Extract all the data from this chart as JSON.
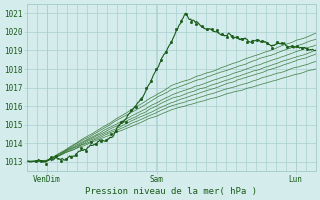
{
  "title": "Pression niveau de la mer( hPa )",
  "xlabel_ticks": [
    "VenDim",
    "Sam",
    "Lun"
  ],
  "xlabel_tick_positions": [
    0.07,
    0.45,
    0.93
  ],
  "ylim": [
    1012.5,
    1021.5
  ],
  "yticks": [
    1013,
    1014,
    1015,
    1016,
    1017,
    1018,
    1019,
    1020,
    1021
  ],
  "bg_color": "#d4ecec",
  "grid_color": "#aacece",
  "line_color_dark": "#1a5c1a",
  "line_color_light": "#3a7a3a",
  "xlim": [
    0.0,
    1.0
  ],
  "figsize": [
    3.2,
    2.0
  ],
  "dpi": 100
}
